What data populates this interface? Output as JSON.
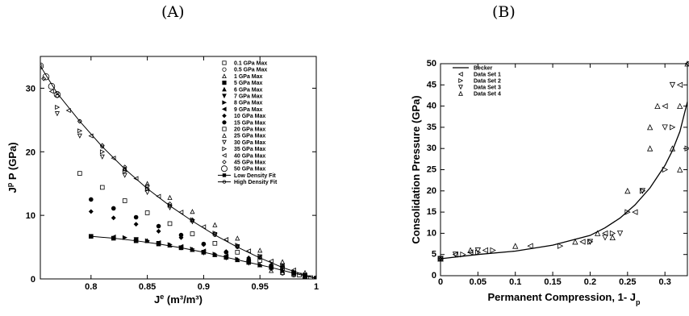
{
  "panels": [
    {
      "label": "(A)",
      "chart_data": {
        "type": "scatter",
        "xlabel": "J^e (m^3/m^3)",
        "ylabel": "J^p P (GPa)",
        "xlim": [
          0.755,
          1.0
        ],
        "ylim": [
          0,
          35
        ],
        "xticks": [
          "0.8",
          "0.85",
          "0.9",
          "0.95",
          "1"
        ],
        "yticks": [
          "0",
          "10",
          "20",
          "30"
        ],
        "legend_position": "top-right",
        "grid": false,
        "series": [
          {
            "name": "0.1 GPa Max",
            "marker": "square-open",
            "x": [
              0.985,
              0.99,
              0.995,
              1.0
            ],
            "y": [
              0.6,
              0.4,
              0.2,
              0.1
            ]
          },
          {
            "name": "0.5 GPa Max",
            "marker": "circle-open",
            "x": [
              0.97,
              0.98,
              0.99,
              1.0
            ],
            "y": [
              0.9,
              0.6,
              0.3,
              0.1
            ]
          },
          {
            "name": "1 GPa Max",
            "marker": "triangle-open",
            "x": [
              0.96,
              0.97,
              0.98,
              0.99,
              1.0
            ],
            "y": [
              1.3,
              1.0,
              0.7,
              0.3,
              0.1
            ]
          },
          {
            "name": "5 GPa Max",
            "marker": "square-filled",
            "x": [
              0.8,
              0.82,
              0.84,
              0.86,
              0.88,
              0.9,
              0.92,
              0.94,
              0.96,
              0.98,
              1.0
            ],
            "y": [
              6.7,
              6.4,
              6.0,
              5.5,
              4.9,
              4.2,
              3.4,
              2.6,
              1.8,
              0.9,
              0.1
            ]
          },
          {
            "name": "6 GPa Max",
            "marker": "triangle-filled",
            "x": [
              0.85,
              0.87,
              0.89,
              0.91,
              0.93,
              0.95,
              0.97,
              0.99,
              1.0
            ],
            "y": [
              6.0,
              5.3,
              4.6,
              3.8,
              3.0,
              2.2,
              1.3,
              0.5,
              0.1
            ]
          },
          {
            "name": "7 GPa Max",
            "marker": "triangle-down-filled",
            "x": [
              0.84,
              0.86,
              0.88,
              0.9,
              0.92,
              0.94,
              0.96,
              0.98,
              1.0
            ],
            "y": [
              6.2,
              5.6,
              4.9,
              4.1,
              3.3,
              2.5,
              1.6,
              0.8,
              0.1
            ]
          },
          {
            "name": "8 GPa Max",
            "marker": "triangle-right-filled",
            "x": [
              0.83,
              0.85,
              0.87,
              0.89,
              0.91,
              0.93,
              0.95,
              0.97,
              0.99
            ],
            "y": [
              6.5,
              6.0,
              5.4,
              4.7,
              3.9,
              3.1,
              2.2,
              1.3,
              0.4
            ]
          },
          {
            "name": "9 GPa Max",
            "marker": "triangle-left-filled",
            "x": [
              0.82,
              0.84,
              0.86,
              0.88,
              0.9,
              0.92,
              0.94,
              0.96,
              0.98,
              1.0
            ],
            "y": [
              6.6,
              6.2,
              5.7,
              5.1,
              4.4,
              3.6,
              2.8,
              1.9,
              1.0,
              0.1
            ]
          },
          {
            "name": "10 GPa Max",
            "marker": "diamond-filled",
            "x": [
              0.8,
              0.82,
              0.84,
              0.86,
              0.88,
              0.9,
              0.92,
              0.94,
              0.96,
              0.98,
              1.0
            ],
            "y": [
              10.6,
              9.6,
              8.6,
              7.5,
              6.5,
              5.4,
              4.3,
              3.3,
              2.2,
              1.1,
              0.1
            ]
          },
          {
            "name": "15 GPa Max",
            "marker": "circle-filled",
            "x": [
              0.8,
              0.82,
              0.84,
              0.86,
              0.88,
              0.9,
              0.92,
              0.94,
              0.96,
              0.98,
              1.0
            ],
            "y": [
              12.5,
              11.1,
              9.7,
              8.3,
              6.9,
              5.5,
              4.2,
              3.0,
              1.9,
              0.9,
              0.1
            ]
          },
          {
            "name": "20 GPa Max",
            "marker": "square-open",
            "x": [
              0.79,
              0.81,
              0.83,
              0.85,
              0.87,
              0.89,
              0.91,
              0.93,
              0.95,
              0.97,
              0.99
            ],
            "y": [
              16.6,
              14.4,
              12.3,
              10.4,
              8.7,
              7.1,
              5.6,
              4.2,
              2.9,
              1.7,
              0.6
            ]
          },
          {
            "name": "25 GPa Max",
            "marker": "triangle-open",
            "x": [
              0.83,
              0.85,
              0.87,
              0.89,
              0.91,
              0.93,
              0.95,
              0.97,
              0.99,
              1.0
            ],
            "y": [
              17.3,
              15.0,
              12.8,
              10.6,
              8.5,
              6.4,
              4.5,
              2.7,
              1.0,
              0.3
            ]
          },
          {
            "name": "30 GPa Max",
            "marker": "triangle-down-open",
            "x": [
              0.77,
              0.79,
              0.81,
              0.83,
              0.85,
              0.87,
              0.89,
              0.91,
              0.93,
              0.95,
              0.97,
              0.99
            ],
            "y": [
              26.0,
              22.5,
              19.2,
              16.3,
              13.6,
              11.2,
              9.0,
              7.0,
              5.1,
              3.5,
              2.0,
              0.6
            ]
          },
          {
            "name": "35 GPa Max",
            "marker": "triangle-right-open",
            "x": [
              0.77,
              0.79,
              0.81,
              0.83,
              0.85,
              0.87,
              0.89,
              0.91,
              0.93,
              0.95,
              0.97,
              0.99
            ],
            "y": [
              27.0,
              23.3,
              20.0,
              16.9,
              14.1,
              11.6,
              9.3,
              7.2,
              5.3,
              3.6,
              2.1,
              0.6
            ]
          },
          {
            "name": "40 GPa Max",
            "marker": "triangle-left-open",
            "x": [
              0.765,
              0.78,
              0.8,
              0.82,
              0.84,
              0.86,
              0.88,
              0.9,
              0.92,
              0.94,
              0.96,
              0.98,
              1.0
            ],
            "y": [
              29.5,
              26.5,
              22.5,
              19.0,
              15.8,
              13.0,
              10.5,
              8.2,
              6.2,
              4.4,
              2.8,
              1.4,
              0.2
            ]
          },
          {
            "name": "45 GPa Max",
            "marker": "diamond-open",
            "x": [
              0.758,
              0.77,
              0.79,
              0.81,
              0.83,
              0.85,
              0.87,
              0.89,
              0.91,
              0.93,
              0.95,
              0.97,
              0.99
            ],
            "y": [
              31.5,
              28.8,
              24.8,
              21.0,
              17.6,
              14.6,
              11.8,
              9.3,
              7.1,
              5.1,
              3.4,
              1.9,
              0.6
            ]
          },
          {
            "name": "50 GPa Max",
            "marker": "circle-open-large",
            "x": [
              0.755,
              0.76,
              0.765,
              0.77
            ],
            "y": [
              33.5,
              31.8,
              30.3,
              29.0
            ]
          },
          {
            "name": "Low Density Fit",
            "marker": "line-square",
            "x": [
              0.8,
              0.82,
              0.84,
              0.86,
              0.88,
              0.9,
              0.92,
              0.94,
              0.96,
              0.98,
              1.0
            ],
            "y": [
              6.7,
              6.4,
              6.0,
              5.5,
              4.9,
              4.2,
              3.4,
              2.6,
              1.8,
              0.9,
              0.1
            ]
          },
          {
            "name": "High Density Fit",
            "marker": "line-circle",
            "x": [
              0.755,
              0.77,
              0.79,
              0.81,
              0.83,
              0.85,
              0.87,
              0.89,
              0.91,
              0.93,
              0.95,
              0.97,
              0.99,
              1.0
            ],
            "y": [
              33.5,
              29.2,
              24.8,
              20.8,
              17.3,
              14.2,
              11.5,
              9.1,
              6.9,
              5.0,
              3.3,
              1.8,
              0.6,
              0.1
            ]
          }
        ]
      }
    },
    {
      "label": "(B)",
      "chart_data": {
        "type": "scatter",
        "xlabel": "Permanent Compression, 1- J_p",
        "ylabel": "Consolidation Pressure (GPa)",
        "xlim": [
          0,
          0.33
        ],
        "ylim": [
          0,
          50
        ],
        "xticks": [
          "0",
          "0.05",
          "0.1",
          "0.15",
          "0.2",
          "0.25",
          "0.3"
        ],
        "yticks": [
          "0",
          "5",
          "10",
          "15",
          "20",
          "25",
          "30",
          "35",
          "40",
          "45",
          "50"
        ],
        "legend_position": "top-left",
        "grid": false,
        "series": [
          {
            "name": "Becker",
            "marker": "line",
            "x": [
              0,
              0.05,
              0.1,
              0.15,
              0.2,
              0.22,
              0.24,
              0.26,
              0.28,
              0.3,
              0.31,
              0.32,
              0.33
            ],
            "y": [
              4,
              5,
              5.8,
              7.2,
              9.5,
              11.3,
              13.6,
              16.7,
              20.7,
              26,
              29.5,
              34,
              41
            ]
          },
          {
            "name": "Data Set 1",
            "marker": "triangle-left-open",
            "x": [
              0.0,
              0.02,
              0.04,
              0.06,
              0.12,
              0.19,
              0.22,
              0.26,
              0.3,
              0.32,
              0.33
            ],
            "y": [
              4,
              5,
              5.5,
              6,
              7,
              8,
              10,
              15,
              40,
              45,
              50
            ]
          },
          {
            "name": "Data Set 2",
            "marker": "triangle-right-open",
            "x": [
              0.0,
              0.03,
              0.05,
              0.07,
              0.16,
              0.2,
              0.23,
              0.25,
              0.27,
              0.3,
              0.31,
              0.33
            ],
            "y": [
              4,
              5,
              5.5,
              6,
              7,
              8,
              10,
              15,
              20,
              25,
              35,
              30
            ]
          },
          {
            "name": "Data Set 3",
            "marker": "triangle-down-open",
            "x": [
              0.0,
              0.02,
              0.05,
              0.2,
              0.22,
              0.24,
              0.27,
              0.3,
              0.31
            ],
            "y": [
              4,
              5,
              6,
              8,
              9,
              10,
              20,
              35,
              45
            ]
          },
          {
            "name": "Data Set 4",
            "marker": "triangle-up-open",
            "x": [
              0.0,
              0.04,
              0.1,
              0.18,
              0.21,
              0.23,
              0.25,
              0.28,
              0.28,
              0.29,
              0.31,
              0.32,
              0.32,
              0.33
            ],
            "y": [
              4,
              6,
              7,
              8,
              10,
              9,
              20,
              30,
              35,
              40,
              30,
              25,
              40,
              50
            ]
          }
        ]
      }
    }
  ]
}
